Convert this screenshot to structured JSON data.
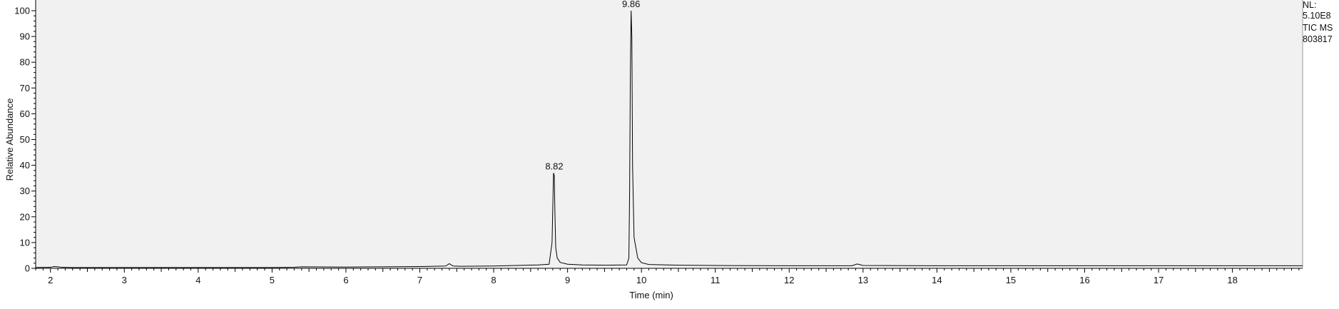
{
  "chart_data": {
    "type": "line",
    "title": "",
    "xlabel": "Time (min)",
    "ylabel": "Relative Abundance",
    "xlim": [
      1.8,
      18.95
    ],
    "ylim": [
      0,
      100
    ],
    "x_ticks": [
      2,
      3,
      4,
      5,
      6,
      7,
      8,
      9,
      10,
      11,
      12,
      13,
      14,
      15,
      16,
      17,
      18
    ],
    "y_ticks": [
      0,
      10,
      20,
      30,
      40,
      50,
      60,
      70,
      80,
      90,
      100
    ],
    "grid": false,
    "plot_background": "#f1f1f1",
    "line_color": "#000000",
    "peaks": [
      {
        "x": 8.82,
        "y": 37,
        "label": "8.82"
      },
      {
        "x": 9.86,
        "y": 100,
        "label": "9.86"
      }
    ],
    "series": [
      {
        "x": [
          1.8,
          2.0,
          2.05,
          2.1,
          2.15,
          2.3,
          3.0,
          4.0,
          5.0,
          5.3,
          5.4,
          6.0,
          6.5,
          7.0,
          7.2,
          7.35,
          7.4,
          7.45,
          7.55,
          8.0,
          8.3,
          8.6,
          8.75,
          8.79,
          8.81,
          8.82,
          8.83,
          8.84,
          8.86,
          8.9,
          9.0,
          9.2,
          9.5,
          9.8,
          9.83,
          9.84,
          9.85,
          9.86,
          9.87,
          9.88,
          9.9,
          9.95,
          10.0,
          10.1,
          10.5,
          11.0,
          12.0,
          12.85,
          12.92,
          13.0,
          14.0,
          15.0,
          16.0,
          17.0,
          18.0,
          18.95
        ],
        "y": [
          0.3,
          0.4,
          0.7,
          0.6,
          0.4,
          0.3,
          0.3,
          0.3,
          0.3,
          0.4,
          0.6,
          0.5,
          0.6,
          0.7,
          0.8,
          0.9,
          1.8,
          0.9,
          0.8,
          0.9,
          1.1,
          1.3,
          1.6,
          10,
          37,
          36,
          20,
          8,
          4,
          2.3,
          1.6,
          1.3,
          1.2,
          1.3,
          4,
          30,
          76,
          100,
          90,
          40,
          12,
          4,
          2.2,
          1.5,
          1.2,
          1.1,
          1.0,
          1.0,
          1.7,
          1.1,
          1.0,
          1.0,
          1.0,
          1.0,
          1.0,
          1.0
        ]
      }
    ]
  },
  "info": {
    "nl_label": "NL:",
    "nl_value": "5.10E8",
    "scan_type": "TIC  MS",
    "file_id": "803817"
  }
}
